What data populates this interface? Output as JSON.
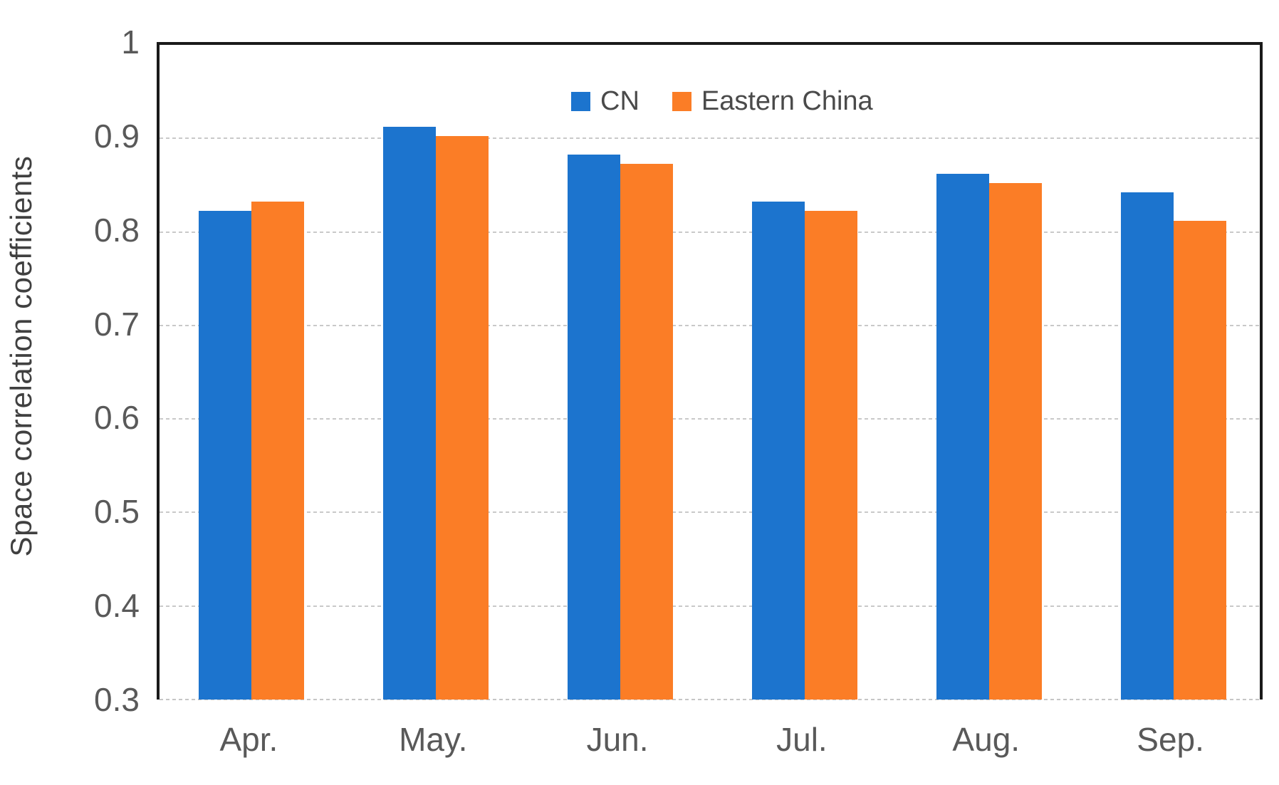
{
  "figure": {
    "background": "#ffffff",
    "frame_color": "#1a1a1a",
    "gridline_color": "#c9c9c9",
    "tick_text_color": "#595959",
    "axis_title_color": "#404040"
  },
  "chart_data": {
    "type": "bar",
    "title": "",
    "xlabel": "",
    "ylabel": "Space correlation coefficients",
    "categories": [
      "Apr.",
      "May.",
      "Jun.",
      "Jul.",
      "Aug.",
      "Sep."
    ],
    "series": [
      {
        "name": "CN",
        "color": "#1c74ce",
        "values": [
          0.82,
          0.91,
          0.88,
          0.83,
          0.86,
          0.84
        ]
      },
      {
        "name": "Eastern China",
        "color": "#fb7d26",
        "values": [
          0.83,
          0.9,
          0.87,
          0.82,
          0.85,
          0.81
        ]
      }
    ],
    "ylim": [
      0.3,
      1.0
    ],
    "yticks": [
      1,
      0.9,
      0.8,
      0.7,
      0.6,
      0.5,
      0.4,
      0.3
    ],
    "ytick_labels": [
      "1",
      "0.9",
      "0.8",
      "0.7",
      "0.6",
      "0.5",
      "0.4",
      "0.3"
    ],
    "grid": true,
    "gridline_style": "dashed",
    "legend_position": "top-right-inside"
  }
}
